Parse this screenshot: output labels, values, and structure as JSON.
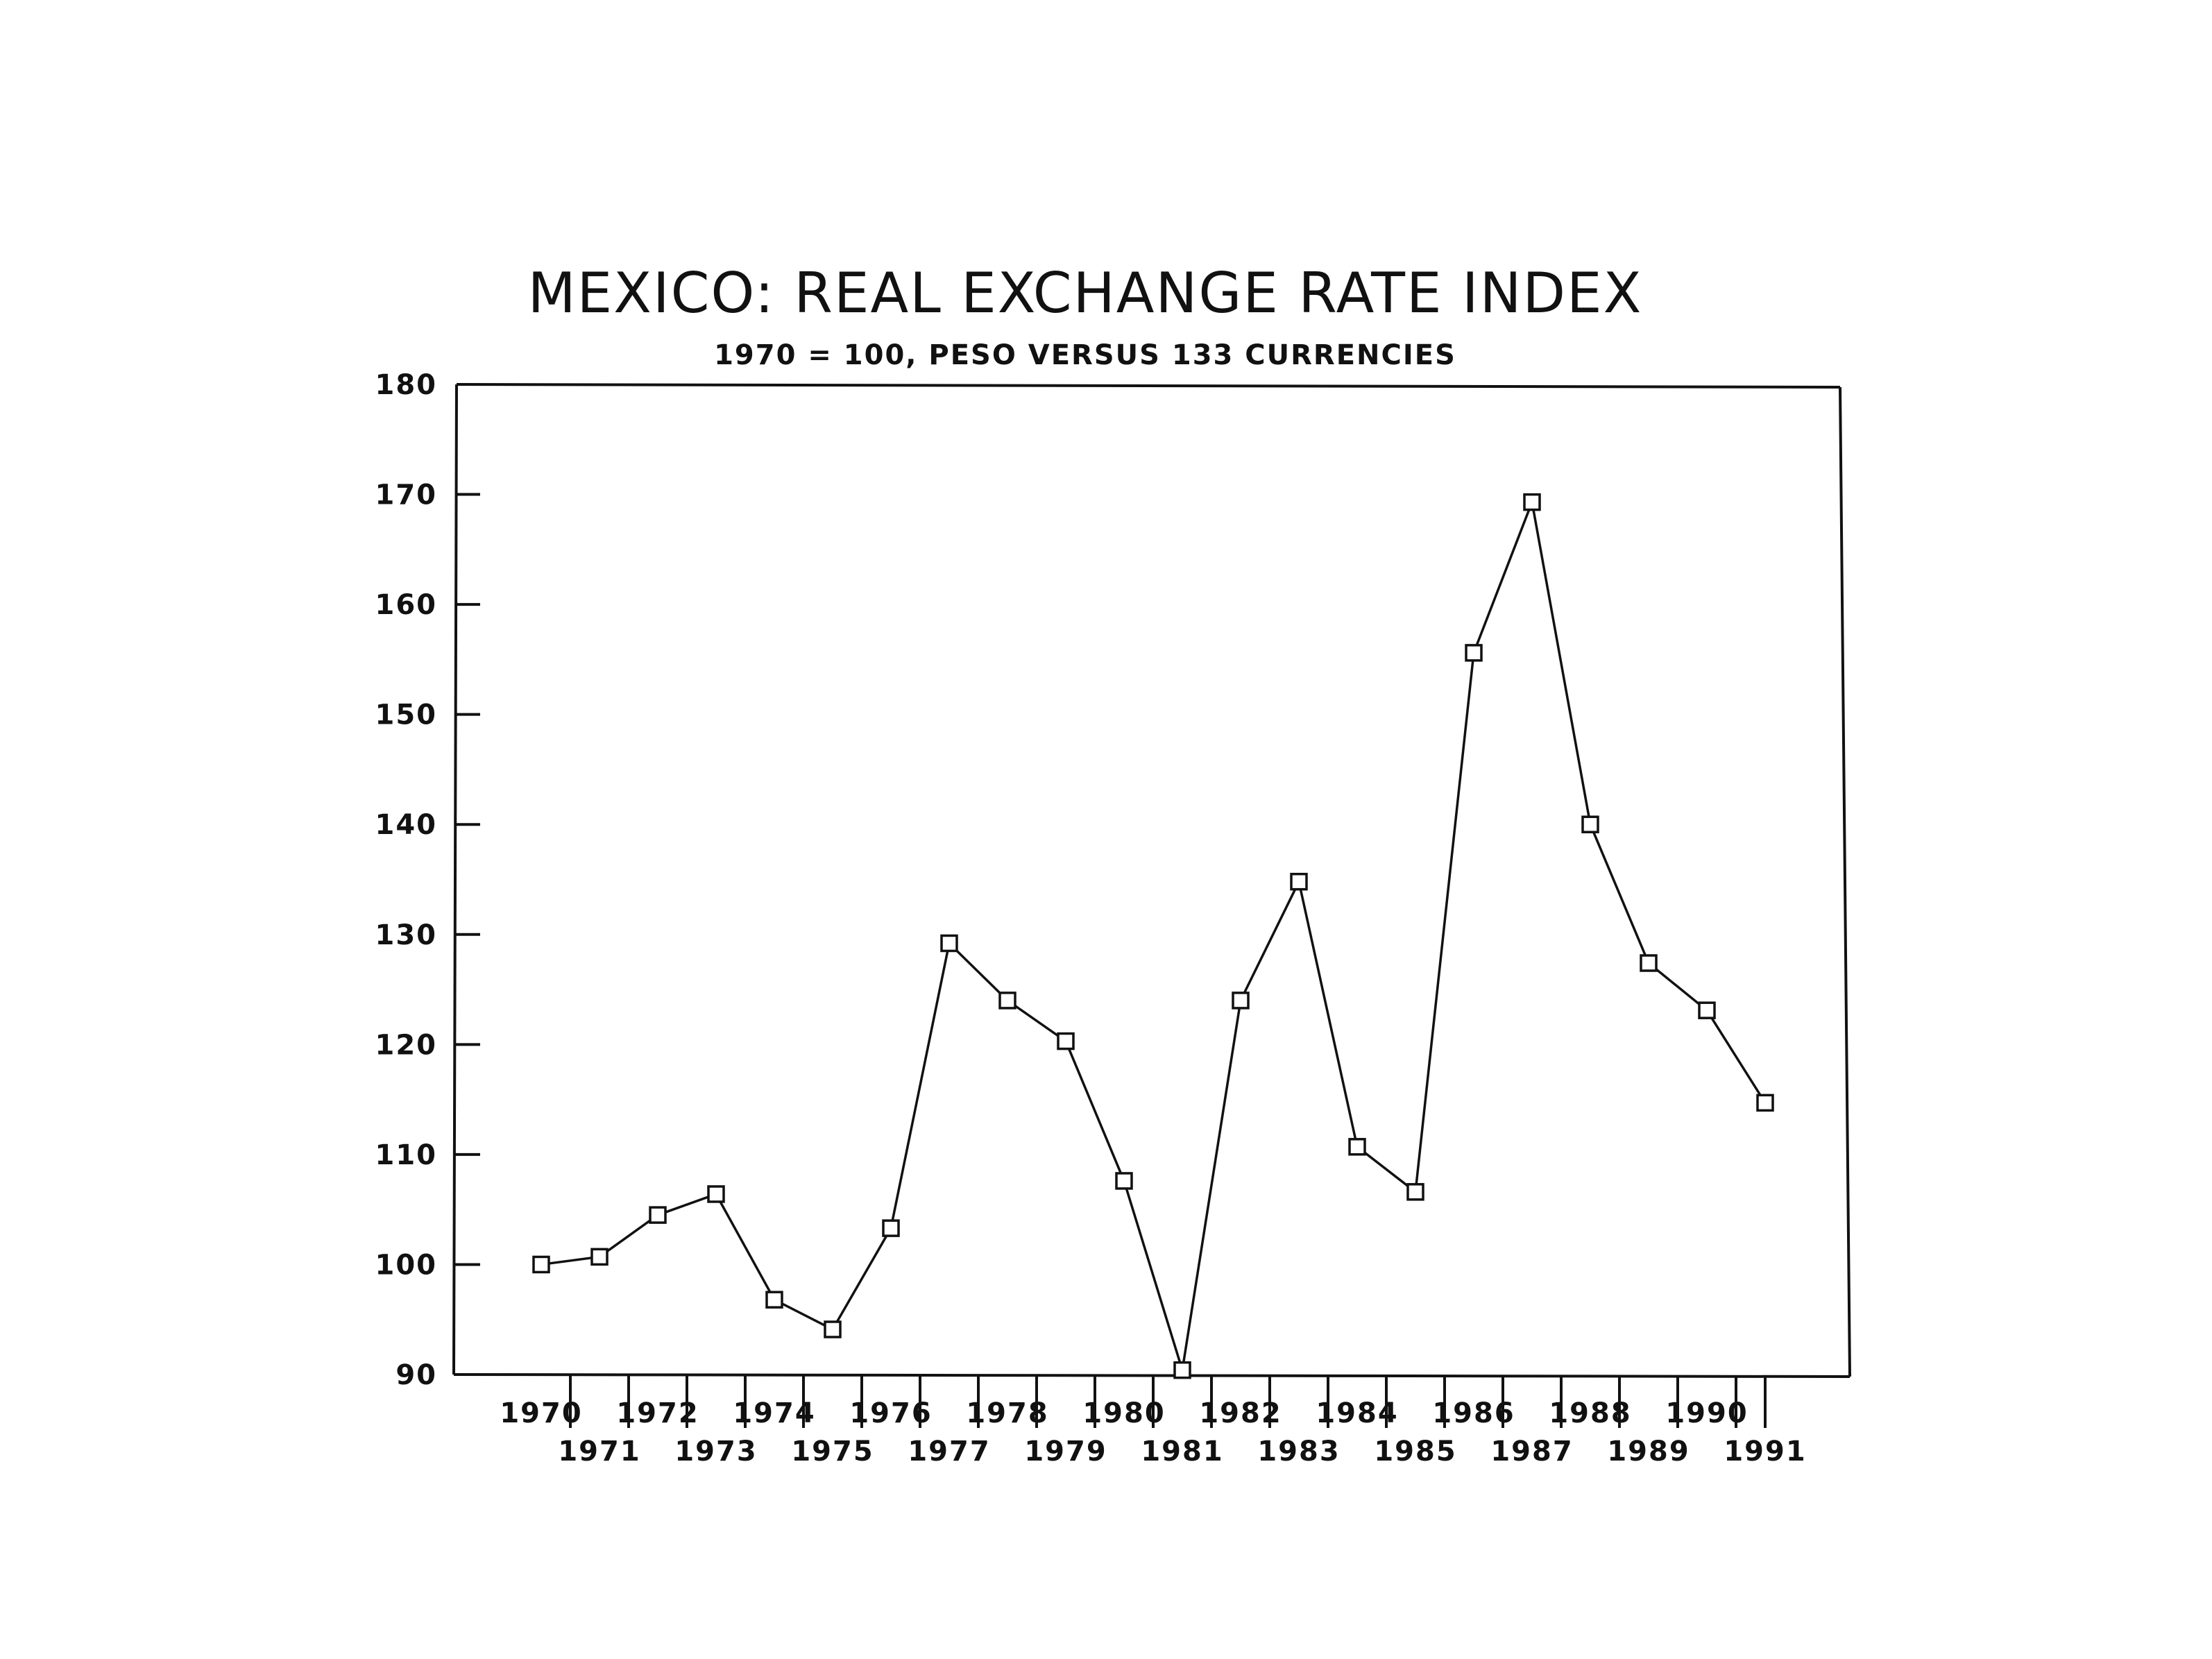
{
  "chart_data": {
    "type": "line",
    "title": "MEXICO: REAL EXCHANGE RATE INDEX",
    "subtitle": "1970 = 100, PESO VERSUS 133 CURRENCIES",
    "xlabel": "",
    "ylabel": "",
    "x": [
      "1970",
      "1971",
      "1972",
      "1973",
      "1974",
      "1975",
      "1976",
      "1977",
      "1978",
      "1979",
      "1980",
      "1981",
      "1982",
      "1983",
      "1984",
      "1985",
      "1986",
      "1987",
      "1988",
      "1989",
      "1990",
      "1991"
    ],
    "values": [
      100,
      100.7,
      104.5,
      106.4,
      96.8,
      94.1,
      103.3,
      129.2,
      124.0,
      120.3,
      107.6,
      90.4,
      124.0,
      134.8,
      110.7,
      106.6,
      155.6,
      169.3,
      140.0,
      127.4,
      123.1,
      114.7
    ],
    "ylim": [
      90,
      180
    ],
    "yticks": [
      "90",
      "100",
      "110",
      "120",
      "130",
      "140",
      "150",
      "160",
      "170",
      "180"
    ],
    "marker": "square",
    "grid": false,
    "legend": "none"
  }
}
